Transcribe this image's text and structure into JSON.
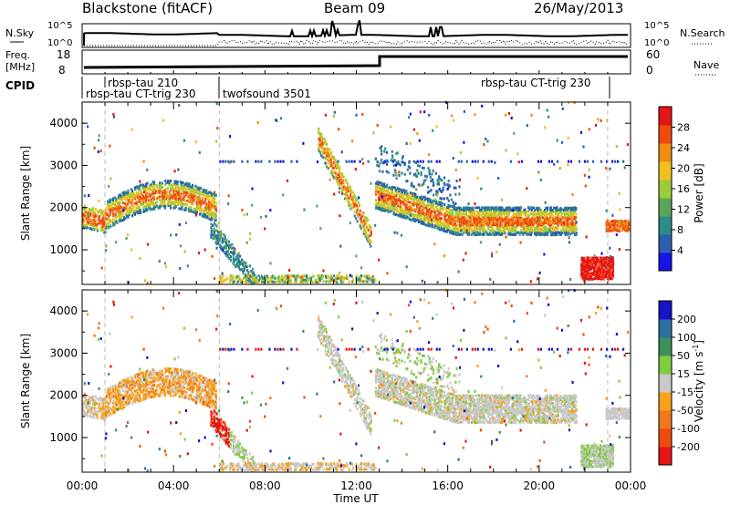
{
  "header": {
    "station": "Blackstone (fitACF)",
    "beam": "Beam 09",
    "date": "26/May/2013"
  },
  "top_panel": {
    "nsky_label": "N.Sky",
    "nsearch_label": "N.Search",
    "left_ticks": [
      "10^5",
      "10^0"
    ],
    "right_ticks": [
      "10^5",
      "10^0"
    ]
  },
  "freq_panel": {
    "freq_label_1": "Freq.",
    "freq_label_2": "[MHz]",
    "left_ticks": [
      "18",
      "8"
    ],
    "right_ticks": [
      "60",
      "0"
    ],
    "nave_label": "Nave"
  },
  "cpid": {
    "label": "CPID",
    "segments": [
      "rbsp-tau 210",
      "rbsp-tau CT-trig 230",
      "twofsound 3501",
      "rbsp-tau CT-trig 230"
    ]
  },
  "colors": {
    "power_scale": [
      "#1414e6",
      "#2a5fb0",
      "#2f8a8a",
      "#5aa55a",
      "#9ccc3c",
      "#f0c020",
      "#f08c14",
      "#ee4a10",
      "#e61414"
    ],
    "velocity_scale": [
      "#1414c8",
      "#2e6fa0",
      "#3d8f5a",
      "#7fcc40",
      "#c8c8c8",
      "#f7a21a",
      "#f0781a",
      "#ee4a10",
      "#e61414"
    ]
  },
  "chart_data": [
    {
      "type": "heatmap",
      "name": "power",
      "ylabel": "Slant Range [km]",
      "yticks": [
        "1000",
        "2000",
        "3000",
        "4000"
      ],
      "ylim": [
        180,
        4500
      ],
      "xlim": [
        0,
        24
      ],
      "colorbar": {
        "label": "Power [dB]",
        "ticks": [
          "4",
          "8",
          "12",
          "16",
          "20",
          "24",
          "28"
        ],
        "range": [
          0,
          32
        ]
      },
      "features": [
        {
          "t": [
            0.0,
            1.0
          ],
          "range_km": [
            1500,
            1900
          ],
          "level": "high"
        },
        {
          "t": [
            1.0,
            5.8
          ],
          "range_km": [
            1600,
            2400
          ],
          "level": "high"
        },
        {
          "t": [
            6.0,
            7.5
          ],
          "range_km": [
            200,
            1300
          ],
          "level": "mixed"
        },
        {
          "t": [
            10.3,
            12.6
          ],
          "range_km": [
            1200,
            3500
          ],
          "level": "high"
        },
        {
          "t": [
            12.8,
            21.6
          ],
          "range_km": [
            1500,
            2400
          ],
          "level": "high"
        },
        {
          "t": [
            21.8,
            23.2
          ],
          "range_km": [
            200,
            900
          ],
          "level": "very-high"
        },
        {
          "t": [
            23.0,
            24.0
          ],
          "range_km": [
            1400,
            1700
          ],
          "level": "high"
        }
      ]
    },
    {
      "type": "heatmap",
      "name": "velocity",
      "ylabel": "Slant Range [km]",
      "yticks": [
        "1000",
        "2000",
        "3000",
        "4000"
      ],
      "ylim": [
        180,
        4500
      ],
      "xlim": [
        0,
        24
      ],
      "xlabel": "Time UT",
      "xticks": [
        "00:00",
        "04:00",
        "08:00",
        "12:00",
        "16:00",
        "20:00",
        "00:00"
      ],
      "colorbar": {
        "label": "Velocity [m s",
        "label_sup": "-1",
        "label_end": "]",
        "ticks": [
          "200",
          "100",
          "50",
          "15",
          "-15",
          "-50",
          "-100",
          "-200"
        ],
        "range": [
          -250,
          250
        ]
      },
      "features": [
        {
          "t": [
            0.0,
            6.0
          ],
          "range_km": [
            1500,
            2500
          ],
          "level": "near-zero to -50"
        },
        {
          "t": [
            5.6,
            6.3
          ],
          "range_km": [
            600,
            1600
          ],
          "level": "-200"
        },
        {
          "t": [
            10.3,
            24.0
          ],
          "range_km": [
            1200,
            2500
          ],
          "level": "near-zero"
        }
      ]
    }
  ]
}
